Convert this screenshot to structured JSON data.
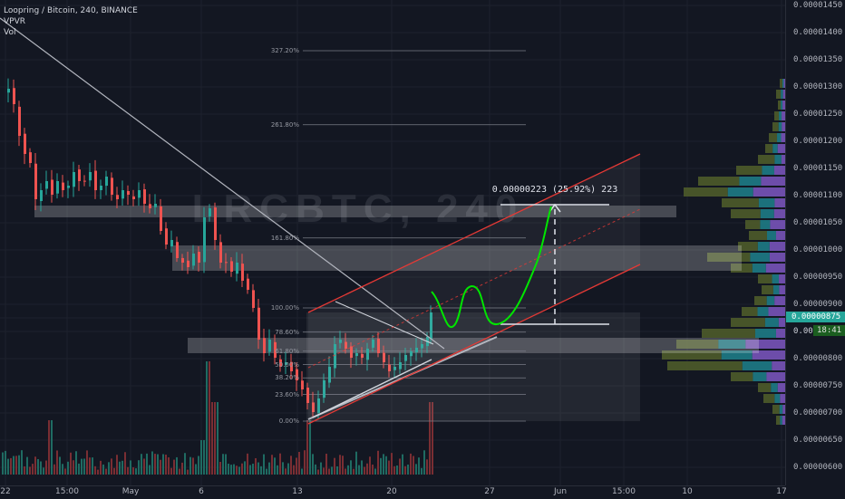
{
  "legend": {
    "symbol_line": "Loopring / Bitcoin, 240, BINANCE",
    "indicator_vpvr": "VPVR",
    "indicator_vol": "Vol"
  },
  "price_axis": {
    "labels": [
      "0.00001450",
      "0.00001400",
      "0.00001350",
      "0.00001300",
      "0.00001250",
      "0.00001200",
      "0.00001150",
      "0.00001100",
      "0.00001050",
      "0.00001000",
      "0.00000950",
      "0.00000900",
      "0.00000875",
      "0.00000850",
      "0.00000800",
      "0.00000750",
      "0.00000700",
      "0.00000650",
      "0.00000600"
    ],
    "current_price": "0.00000875",
    "countdown": "18:41",
    "partial_label": "0.000"
  },
  "time_axis": {
    "labels": [
      "22",
      "15:00",
      "May",
      "6",
      "13",
      "20",
      "27",
      "Jun",
      "15:00",
      "10",
      "17"
    ]
  },
  "fib_levels": [
    {
      "label": "327.20%",
      "ratio": 3.272
    },
    {
      "label": "261.80%",
      "ratio": 2.618
    },
    {
      "label": "161.80%",
      "ratio": 1.618
    },
    {
      "label": "100.00%",
      "ratio": 1.0
    },
    {
      "label": "78.60%",
      "ratio": 0.786
    },
    {
      "label": "61.80%",
      "ratio": 0.618
    },
    {
      "label": "50.00%",
      "ratio": 0.5
    },
    {
      "label": "38.20%",
      "ratio": 0.382
    },
    {
      "label": "23.60%",
      "ratio": 0.236
    },
    {
      "label": "0.00%",
      "ratio": 0.0
    }
  ],
  "measure": {
    "text": "0.00000223 (25.92%) 223"
  },
  "colors": {
    "background": "#131722",
    "bull": "#26a69a",
    "bear": "#ef5350",
    "channel": "#e53935",
    "projection": "#00e600",
    "trendline": "#b2b5be"
  },
  "watermark": "LRCBTC, 240"
}
